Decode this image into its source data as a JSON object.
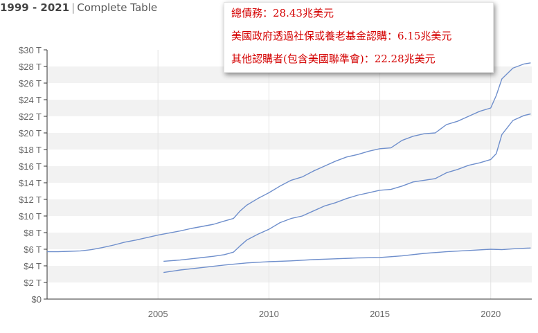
{
  "header": {
    "range": "1999 - 2021",
    "separator": "|",
    "subtitle": "Complete Table"
  },
  "info_box": {
    "lines": [
      "總債務：28.43兆美元",
      "美國政府透過社保或養老基金認購：6.15兆美元",
      "其他認購者(包含美國聯準會)：22.28兆美元"
    ]
  },
  "colors": {
    "line": "#6f8fcc",
    "band": "#f2f2f2",
    "axis": "#333333",
    "tick_text": "#666666",
    "info_text": "#d40000"
  },
  "chart_data": {
    "type": "line",
    "title": "",
    "xlabel": "",
    "ylabel": "",
    "xlim": [
      2000.0,
      2021.85
    ],
    "ylim": [
      0,
      30
    ],
    "y_ticks": [
      0,
      2,
      4,
      6,
      8,
      10,
      12,
      14,
      16,
      18,
      20,
      22,
      24,
      26,
      28,
      30
    ],
    "y_tick_labels": [
      "$0",
      "$2 T",
      "$4 T",
      "$6 T",
      "$8 T",
      "$10 T",
      "$12 T",
      "$14 T",
      "$16 T",
      "$18 T",
      "$20 T",
      "$22 T",
      "$24 T",
      "$26 T",
      "$28 T",
      "$30 T"
    ],
    "x_ticks": [
      2005,
      2010,
      2015,
      2020
    ],
    "x_tick_labels": [
      "2005",
      "2010",
      "2015",
      "2020"
    ],
    "grid": "alternating horizontal bands",
    "series": [
      {
        "x": [
          2000.0,
          2000.5,
          2001.0,
          2001.5,
          2002.0,
          2002.5,
          2003.0,
          2003.5,
          2004.0,
          2004.5,
          2005.0,
          2005.5,
          2006.0,
          2006.5,
          2007.0,
          2007.5,
          2008.0,
          2008.4,
          2008.7,
          2009.0,
          2009.5,
          2010.0,
          2010.5,
          2011.0,
          2011.5,
          2012.0,
          2012.5,
          2013.0,
          2013.5,
          2014.0,
          2014.5,
          2015.0,
          2015.5,
          2016.0,
          2016.5,
          2017.0,
          2017.5,
          2018.0,
          2018.5,
          2019.0,
          2019.5,
          2020.0,
          2020.25,
          2020.5,
          2021.0,
          2021.5,
          2021.8
        ],
        "values": [
          5.7,
          5.7,
          5.75,
          5.8,
          5.95,
          6.2,
          6.5,
          6.85,
          7.1,
          7.4,
          7.7,
          7.95,
          8.2,
          8.5,
          8.75,
          9.0,
          9.4,
          9.7,
          10.6,
          11.3,
          12.1,
          12.8,
          13.6,
          14.3,
          14.7,
          15.4,
          16.0,
          16.6,
          17.1,
          17.4,
          17.8,
          18.1,
          18.2,
          19.1,
          19.6,
          19.9,
          20.0,
          21.0,
          21.4,
          22.0,
          22.6,
          23.0,
          24.5,
          26.5,
          27.8,
          28.3,
          28.43
        ]
      },
      {
        "x": [
          2005.25,
          2005.5,
          2006.0,
          2006.5,
          2007.0,
          2007.5,
          2008.0,
          2008.4,
          2008.7,
          2009.0,
          2009.5,
          2010.0,
          2010.5,
          2011.0,
          2011.5,
          2012.0,
          2012.5,
          2013.0,
          2013.5,
          2014.0,
          2014.5,
          2015.0,
          2015.5,
          2016.0,
          2016.5,
          2017.0,
          2017.5,
          2018.0,
          2018.5,
          2019.0,
          2019.5,
          2020.0,
          2020.25,
          2020.5,
          2021.0,
          2021.5,
          2021.8
        ],
        "values": [
          4.55,
          4.6,
          4.7,
          4.85,
          5.0,
          5.15,
          5.35,
          5.65,
          6.4,
          7.1,
          7.8,
          8.4,
          9.2,
          9.7,
          10.0,
          10.6,
          11.2,
          11.6,
          12.1,
          12.5,
          12.8,
          13.1,
          13.2,
          13.6,
          14.1,
          14.3,
          14.5,
          15.2,
          15.6,
          16.1,
          16.4,
          16.8,
          17.5,
          19.8,
          21.5,
          22.1,
          22.28
        ]
      },
      {
        "x": [
          2005.25,
          2006.0,
          2007.0,
          2008.0,
          2009.0,
          2010.0,
          2011.0,
          2012.0,
          2013.0,
          2014.0,
          2015.0,
          2016.0,
          2017.0,
          2018.0,
          2019.0,
          2020.0,
          2020.5,
          2021.0,
          2021.8
        ],
        "values": [
          3.2,
          3.5,
          3.8,
          4.1,
          4.35,
          4.5,
          4.6,
          4.75,
          4.85,
          4.95,
          5.0,
          5.2,
          5.5,
          5.7,
          5.85,
          6.0,
          5.95,
          6.05,
          6.15
        ]
      }
    ]
  }
}
